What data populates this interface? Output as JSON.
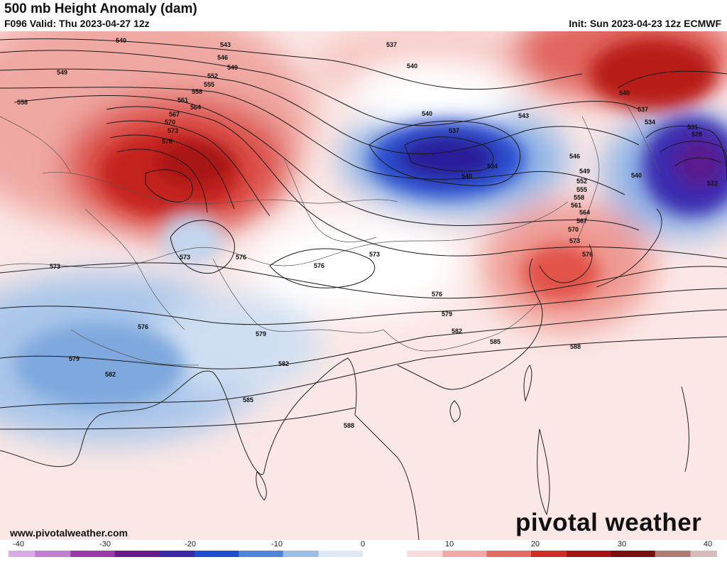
{
  "header": {
    "title": "500 mb Height Anomaly (dam)",
    "valid": "F096 Valid: Thu 2023-04-27 12z",
    "init": "Init: Sun 2023-04-23 12z ECMWF"
  },
  "footer": {
    "website": "www.pivotalweather.com",
    "logo": "pivotal weather"
  },
  "colorbar": {
    "ticks": [
      "-40",
      "-30",
      "-20",
      "-10",
      "0",
      "10",
      "20",
      "30",
      "40"
    ],
    "colors": [
      "#dba9e6",
      "#c27ed0",
      "#9b3aa6",
      "#6b1a8e",
      "#3a2aa8",
      "#1f4fd1",
      "#4d86d8",
      "#9cbde8",
      "#dde9f5",
      "#ffffff",
      "#f8dcdc",
      "#f1a9a5",
      "#e56a63",
      "#cf2c26",
      "#a61414",
      "#7a0f0f",
      "#b07a75",
      "#d8bcbc"
    ]
  },
  "contour_labels": [
    "540",
    "543",
    "546",
    "549",
    "552",
    "555",
    "558",
    "561",
    "564",
    "567",
    "570",
    "573",
    "576",
    "549",
    "558",
    "537",
    "540",
    "540",
    "537",
    "534",
    "540",
    "543",
    "546",
    "549",
    "552",
    "555",
    "558",
    "561",
    "564",
    "567",
    "570",
    "573",
    "576",
    "540",
    "537",
    "534",
    "531",
    "528",
    "540",
    "522",
    "573",
    "573",
    "576",
    "576",
    "573",
    "576",
    "579",
    "582",
    "585",
    "588",
    "576",
    "579",
    "582",
    "585",
    "588",
    "579",
    "582"
  ]
}
